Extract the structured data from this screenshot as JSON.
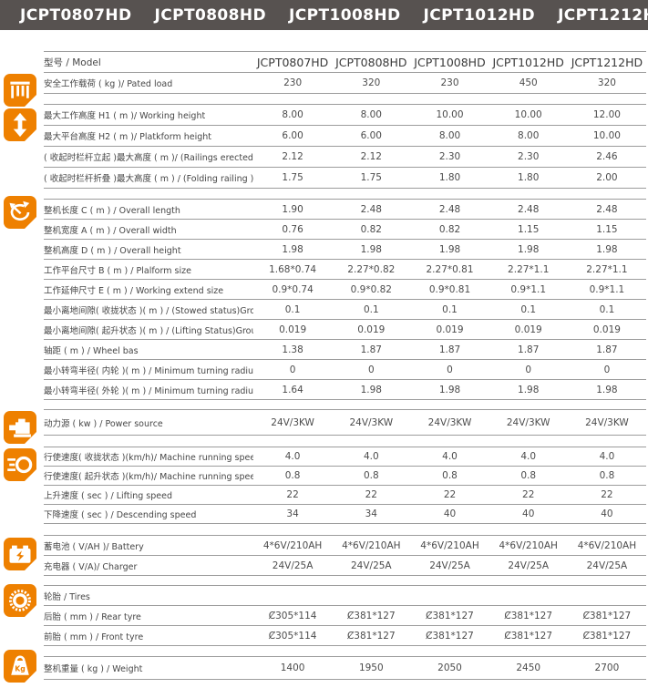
{
  "colors": {
    "accent_orange": "#ee8000",
    "bar_gray": "#575250",
    "line_gray": "#9c9c9c"
  },
  "title_bar": {
    "models": [
      "JCPT0807HD",
      "JCPT0808HD",
      "JCPT1008HD",
      "JCPT1012HD",
      "JCPT1212HD"
    ]
  },
  "table": {
    "sections": [
      {
        "name": "model-load",
        "icon": "cargo-cage-icon",
        "rows": [
          {
            "label": "型号 / Model",
            "values": [
              "JCPT0807HD",
              "JCPT0808HD",
              "JCPT1008HD",
              "JCPT1012HD",
              "JCPT1212HD"
            ],
            "emphasis": true
          },
          {
            "label": "安全工作载荷 ( kg )/ Pated load",
            "values": [
              "230",
              "320",
              "230",
              "450",
              "320"
            ]
          }
        ]
      },
      {
        "name": "height",
        "icon": "height-arrows-icon",
        "rows": [
          {
            "label": "最大工作高度 H1 ( m )/ Working height",
            "values": [
              "8.00",
              "8.00",
              "10.00",
              "10.00",
              "12.00"
            ]
          },
          {
            "label": "最大平台高度 H2 ( m )/ Platkform height",
            "values": [
              "6.00",
              "6.00",
              "8.00",
              "8.00",
              "10.00"
            ]
          },
          {
            "label": "( 收起时栏杆立起 )最大高度 ( m )/ (Railings erected )Maximum height",
            "values": [
              "2.12",
              "2.12",
              "2.30",
              "2.30",
              "2.46"
            ]
          },
          {
            "label": "( 收起时栏杆折叠 )最大高度 ( m ) / (Folding railing )Maximum height",
            "values": [
              "1.75",
              "1.75",
              "1.80",
              "1.80",
              "2.00"
            ]
          }
        ]
      },
      {
        "name": "dimensions",
        "icon": "turning-radius-icon",
        "rows": [
          {
            "label": "整机长度 C ( m ) / Overall length",
            "values": [
              "1.90",
              "2.48",
              "2.48",
              "2.48",
              "2.48"
            ]
          },
          {
            "label": "整机宽度 A ( m ) / Overall width",
            "values": [
              "0.76",
              "0.82",
              "0.82",
              "1.15",
              "1.15"
            ]
          },
          {
            "label": "整机高度 D ( m ) / Overall height",
            "values": [
              "1.98",
              "1.98",
              "1.98",
              "1.98",
              "1.98"
            ]
          },
          {
            "label": "工作平台尺寸 B ( m ) / Plalform size",
            "values": [
              "1.68*0.74",
              "2.27*0.82",
              "2.27*0.81",
              "2.27*1.1",
              "2.27*1.1"
            ]
          },
          {
            "label": "工作延伸尺寸 E ( m ) / Working extend size",
            "values": [
              "0.9*0.74",
              "0.9*0.82",
              "0.9*0.81",
              "0.9*1.1",
              "0.9*1.1"
            ]
          },
          {
            "label": "最小离地间隙( 收拢状态 )( m ) / (Stowed status)Ground clearance",
            "values": [
              "0.1",
              "0.1",
              "0.1",
              "0.1",
              "0.1"
            ]
          },
          {
            "label": "最小离地间隙( 起升状态 )( m ) / (Lifting Status)Ground clearance",
            "values": [
              "0.019",
              "0.019",
              "0.019",
              "0.019",
              "0.019"
            ]
          },
          {
            "label": "轴距 ( m ) / Wheel bas",
            "values": [
              "1.38",
              "1.87",
              "1.87",
              "1.87",
              "1.87"
            ]
          },
          {
            "label": "最小转弯半径( 内轮 )( m ) / Minimum turning radius (inner wheel)",
            "values": [
              "0",
              "0",
              "0",
              "0",
              "0"
            ]
          },
          {
            "label": "最小转弯半径( 外轮 )( m ) / Minimum turning radius (outer wheel)",
            "values": [
              "1.64",
              "1.98",
              "1.98",
              "1.98",
              "1.98"
            ]
          }
        ]
      },
      {
        "name": "power",
        "icon": "motor-icon",
        "rows": [
          {
            "label": "动力源 ( kw ) / Power source",
            "values": [
              "24V/3KW",
              "24V/3KW",
              "24V/3KW",
              "24V/3KW",
              "24V/3KW"
            ]
          }
        ]
      },
      {
        "name": "speed",
        "icon": "speed-icon",
        "rows": [
          {
            "label": "行使速度( 收拢状态 )(km/h)/ Machine running speed (Stowed status)",
            "values": [
              "4.0",
              "4.0",
              "4.0",
              "4.0",
              "4.0"
            ]
          },
          {
            "label": "行使速度( 起升状态 )(km/h)/ Machine running speed (Lifting Status)",
            "values": [
              "0.8",
              "0.8",
              "0.8",
              "0.8",
              "0.8"
            ]
          },
          {
            "label": "上升速度 ( sec ) / Lifting speed",
            "values": [
              "22",
              "22",
              "22",
              "22",
              "22"
            ]
          },
          {
            "label": "下降速度 ( sec ) / Descending speed",
            "values": [
              "34",
              "34",
              "40",
              "40",
              "40"
            ]
          }
        ]
      },
      {
        "name": "battery",
        "icon": "battery-icon",
        "rows": [
          {
            "label": "蓄电池 ( V/AH )/ Battery",
            "values": [
              "4*6V/210AH",
              "4*6V/210AH",
              "4*6V/210AH",
              "4*6V/210AH",
              "4*6V/210AH"
            ]
          },
          {
            "label": "充电器 ( V/A)/ Charger",
            "values": [
              "24V/25A",
              "24V/25A",
              "24V/25A",
              "24V/25A",
              "24V/25A"
            ]
          }
        ]
      },
      {
        "name": "tires",
        "icon": "tire-icon",
        "rows": [
          {
            "label": "轮胎 / Tires",
            "values": [
              "",
              "",
              "",
              "",
              ""
            ]
          },
          {
            "label": "后胎 ( mm ) / Rear tyre",
            "values": [
              "Ȼ305*114",
              "Ȼ381*127",
              "Ȼ381*127",
              "Ȼ381*127",
              "Ȼ381*127"
            ]
          },
          {
            "label": "前胎 ( mm ) / Front tyre",
            "values": [
              "Ȼ305*114",
              "Ȼ381*127",
              "Ȼ381*127",
              "Ȼ381*127",
              "Ȼ381*127"
            ]
          }
        ]
      },
      {
        "name": "weight",
        "icon": "weight-icon",
        "rows": [
          {
            "label": "整机重量 ( kg ) / Weight",
            "values": [
              "1400",
              "1950",
              "2050",
              "2450",
              "2700"
            ]
          }
        ]
      }
    ]
  }
}
